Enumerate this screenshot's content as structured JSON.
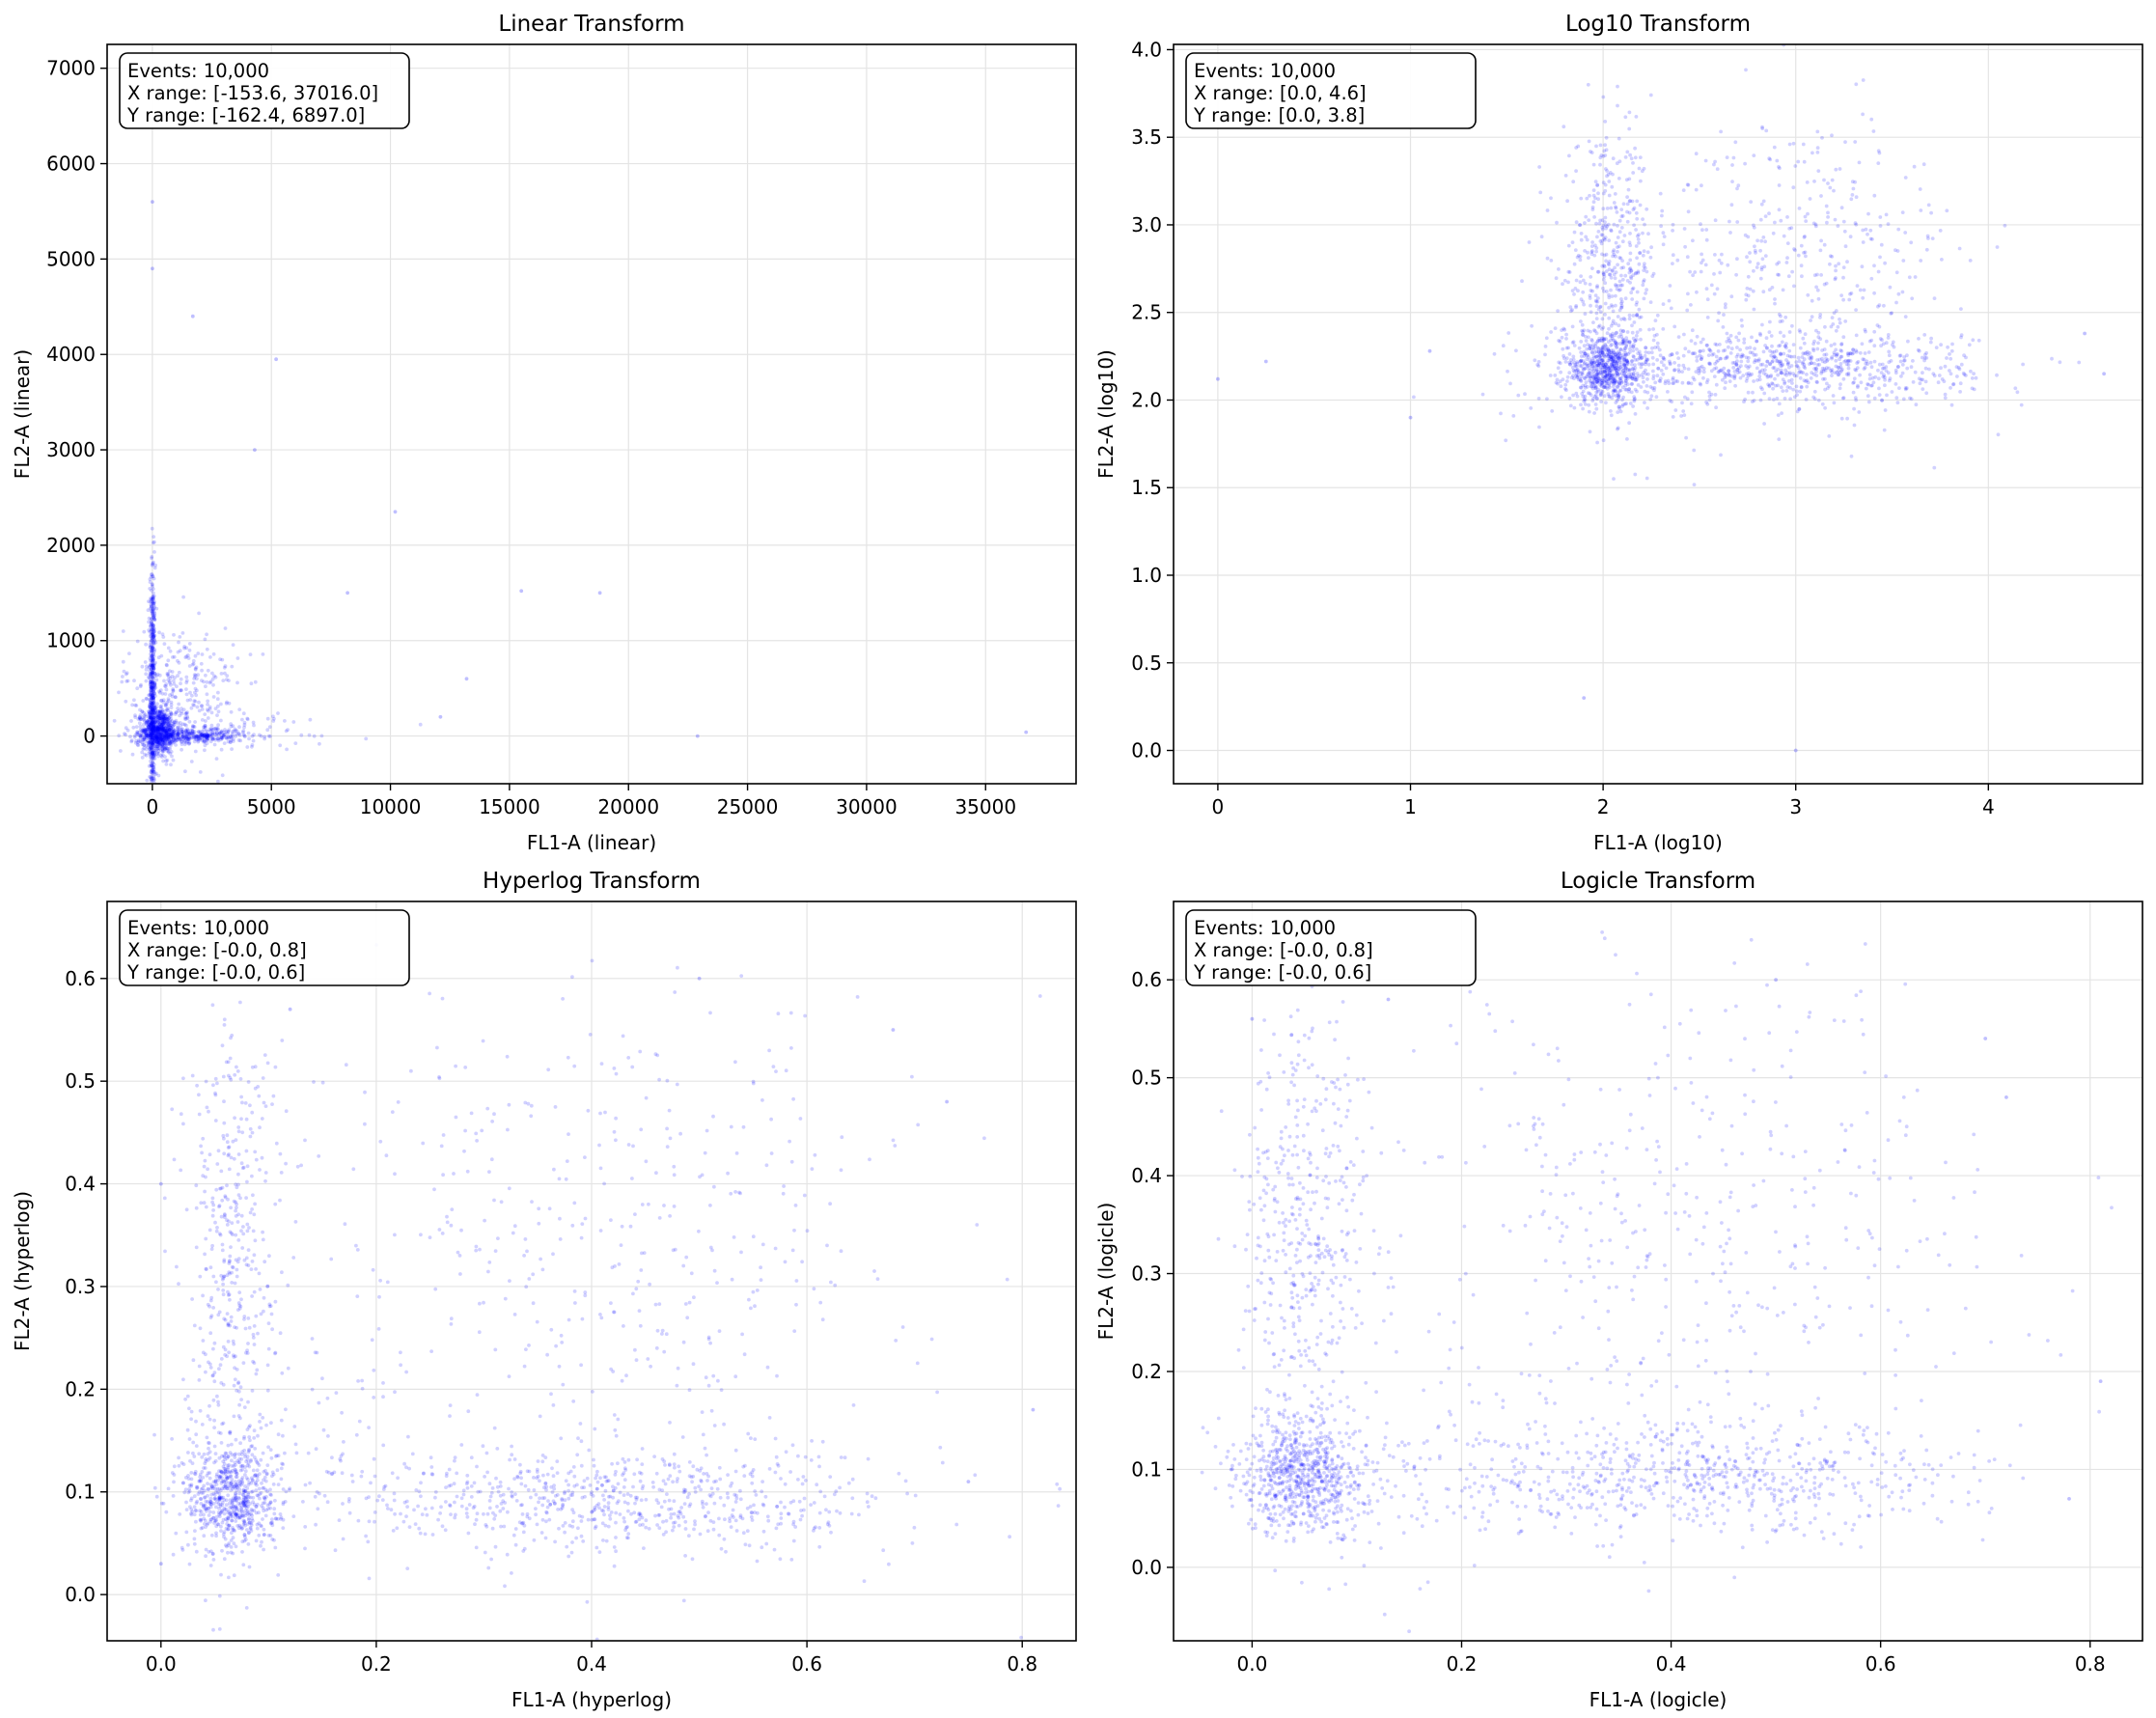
{
  "chart_data": [
    {
      "type": "scatter",
      "title": "Linear Transform",
      "xlabel": "FL1-A (linear)",
      "ylabel": "FL2-A (linear)",
      "xlim": [
        -1900,
        38800
      ],
      "ylim": [
        -500,
        7250
      ],
      "xticks": [
        0,
        5000,
        10000,
        15000,
        20000,
        25000,
        30000,
        35000
      ],
      "yticks": [
        0,
        1000,
        2000,
        3000,
        4000,
        5000,
        6000,
        7000
      ],
      "xtick_labels": [
        "0",
        "5000",
        "10000",
        "15000",
        "20000",
        "25000",
        "30000",
        "35000"
      ],
      "ytick_labels": [
        "0",
        "1000",
        "2000",
        "3000",
        "4000",
        "5000",
        "6000",
        "7000"
      ],
      "grid": true,
      "marker_color": "#0000ff",
      "annotation": [
        "Events: 10,000",
        "X range: [-153.6, 37016.0]",
        "Y range: [-162.4, 6897.0]"
      ],
      "point_groups": [
        {
          "x_center": 0,
          "x_spread": 60,
          "y_center": 400,
          "y_spread": 700,
          "count": 600
        },
        {
          "x_center": 300,
          "x_spread": 350,
          "y_center": 60,
          "y_spread": 120,
          "count": 700
        },
        {
          "x_center": 1500,
          "x_spread": 1200,
          "y_center": 0,
          "y_spread": 40,
          "count": 400
        },
        {
          "x_center": 1200,
          "x_spread": 1200,
          "y_center": 450,
          "y_spread": 350,
          "count": 350
        },
        {
          "x_center": 3500,
          "x_spread": 2800,
          "y_center": 50,
          "y_spread": 120,
          "count": 60
        }
      ],
      "outliers": [
        [
          36700,
          40
        ],
        [
          22900,
          0
        ],
        [
          18800,
          1500
        ],
        [
          15500,
          1520
        ],
        [
          13200,
          600
        ],
        [
          10200,
          2350
        ],
        [
          8200,
          1500
        ],
        [
          4300,
          3000
        ],
        [
          1700,
          4400
        ],
        [
          5200,
          3950
        ],
        [
          12100,
          200
        ],
        [
          0,
          5600
        ],
        [
          0,
          4900
        ]
      ]
    },
    {
      "type": "scatter",
      "title": "Log10 Transform",
      "xlabel": "FL1-A (log10)",
      "ylabel": "FL2-A (log10)",
      "xlim": [
        -0.23,
        4.8
      ],
      "ylim": [
        -0.19,
        4.03
      ],
      "xticks": [
        0,
        1,
        2,
        3,
        4
      ],
      "yticks": [
        0.0,
        0.5,
        1.0,
        1.5,
        2.0,
        2.5,
        3.0,
        3.5,
        4.0
      ],
      "xtick_labels": [
        "0",
        "1",
        "2",
        "3",
        "4"
      ],
      "ytick_labels": [
        "0.0",
        "0.5",
        "1.0",
        "1.5",
        "2.0",
        "2.5",
        "3.0",
        "3.5",
        "4.0"
      ],
      "grid": true,
      "marker_color": "#0000ff",
      "annotation": [
        "Events: 10,000",
        "X range: [0.0, 4.6]",
        "Y range: [0.0, 3.8]"
      ],
      "point_groups": [
        {
          "x_center": 2.03,
          "x_spread": 0.12,
          "y_center": 2.18,
          "y_spread": 0.1,
          "count": 700
        },
        {
          "x_center": 2.03,
          "x_spread": 0.12,
          "y_center": 2.75,
          "y_spread": 0.35,
          "count": 450
        },
        {
          "x_center": 3.0,
          "x_spread": 0.45,
          "y_center": 2.18,
          "y_spread": 0.1,
          "count": 700
        },
        {
          "x_center": 3.0,
          "x_spread": 0.45,
          "y_center": 2.8,
          "y_spread": 0.4,
          "count": 450
        },
        {
          "x_center": 1.9,
          "x_spread": 0.3,
          "y_center": 2.2,
          "y_spread": 0.25,
          "count": 60
        }
      ],
      "outliers": [
        [
          0.0,
          2.12
        ],
        [
          0.25,
          2.22
        ],
        [
          1.0,
          1.9
        ],
        [
          1.1,
          2.28
        ],
        [
          3.0,
          0.0
        ],
        [
          1.9,
          0.3
        ],
        [
          4.6,
          2.15
        ],
        [
          4.5,
          2.38
        ]
      ]
    },
    {
      "type": "scatter",
      "title": "Hyperlog Transform",
      "xlabel": "FL1-A (hyperlog)",
      "ylabel": "FL2-A (hyperlog)",
      "xlim": [
        -0.05,
        0.85
      ],
      "ylim": [
        -0.045,
        0.675
      ],
      "xticks": [
        0.0,
        0.2,
        0.4,
        0.6,
        0.8
      ],
      "yticks": [
        0.0,
        0.1,
        0.2,
        0.3,
        0.4,
        0.5,
        0.6
      ],
      "xtick_labels": [
        "0.0",
        "0.2",
        "0.4",
        "0.6",
        "0.8"
      ],
      "ytick_labels": [
        "0.0",
        "0.1",
        "0.2",
        "0.3",
        "0.4",
        "0.5",
        "0.6"
      ],
      "grid": true,
      "marker_color": "#0000ff",
      "annotation": [
        "Events: 10,000",
        "X range: [-0.0, 0.8]",
        "Y range: [-0.0, 0.6]"
      ],
      "point_groups": [
        {
          "x_center": 0.065,
          "x_spread": 0.022,
          "y_center": 0.095,
          "y_spread": 0.028,
          "count": 700
        },
        {
          "x_center": 0.065,
          "x_spread": 0.022,
          "y_center": 0.33,
          "y_spread": 0.12,
          "count": 450
        },
        {
          "x_center": 0.42,
          "x_spread": 0.13,
          "y_center": 0.09,
          "y_spread": 0.025,
          "count": 700
        },
        {
          "x_center": 0.42,
          "x_spread": 0.14,
          "y_center": 0.33,
          "y_spread": 0.13,
          "count": 450
        },
        {
          "x_center": 0.15,
          "x_spread": 0.05,
          "y_center": 0.12,
          "y_spread": 0.06,
          "count": 60
        }
      ],
      "outliers": [
        [
          0.81,
          0.18
        ],
        [
          0.75,
          0.11
        ],
        [
          0.73,
          0.48
        ],
        [
          0.68,
          0.55
        ],
        [
          0.0,
          0.4
        ],
        [
          0.12,
          0.57
        ],
        [
          0.0,
          0.03
        ],
        [
          0.5,
          0.6
        ]
      ]
    },
    {
      "type": "scatter",
      "title": "Logicle Transform",
      "xlabel": "FL1-A (logicle)",
      "ylabel": "FL2-A (logicle)",
      "xlim": [
        -0.075,
        0.85
      ],
      "ylim": [
        -0.075,
        0.68
      ],
      "xticks": [
        0.0,
        0.2,
        0.4,
        0.6,
        0.8
      ],
      "yticks": [
        0.0,
        0.1,
        0.2,
        0.3,
        0.4,
        0.5,
        0.6
      ],
      "xtick_labels": [
        "0.0",
        "0.2",
        "0.4",
        "0.6",
        "0.8"
      ],
      "ytick_labels": [
        "0.0",
        "0.1",
        "0.2",
        "0.3",
        "0.4",
        "0.5",
        "0.6"
      ],
      "grid": true,
      "marker_color": "#0000ff",
      "annotation": [
        "Events: 10,000",
        "X range: [-0.0, 0.8]",
        "Y range: [-0.0, 0.6]"
      ],
      "point_groups": [
        {
          "x_center": 0.05,
          "x_spread": 0.03,
          "y_center": 0.095,
          "y_spread": 0.03,
          "count": 700
        },
        {
          "x_center": 0.05,
          "x_spread": 0.03,
          "y_center": 0.33,
          "y_spread": 0.12,
          "count": 450
        },
        {
          "x_center": 0.42,
          "x_spread": 0.14,
          "y_center": 0.09,
          "y_spread": 0.028,
          "count": 700
        },
        {
          "x_center": 0.42,
          "x_spread": 0.14,
          "y_center": 0.34,
          "y_spread": 0.13,
          "count": 450
        },
        {
          "x_center": 0.15,
          "x_spread": 0.06,
          "y_center": 0.12,
          "y_spread": 0.06,
          "count": 60
        }
      ],
      "outliers": [
        [
          0.81,
          0.19
        ],
        [
          0.78,
          0.07
        ],
        [
          0.72,
          0.48
        ],
        [
          0.7,
          0.54
        ],
        [
          0.0,
          0.56
        ],
        [
          0.13,
          0.58
        ],
        [
          -0.02,
          0.1
        ],
        [
          0.5,
          0.6
        ]
      ]
    }
  ]
}
